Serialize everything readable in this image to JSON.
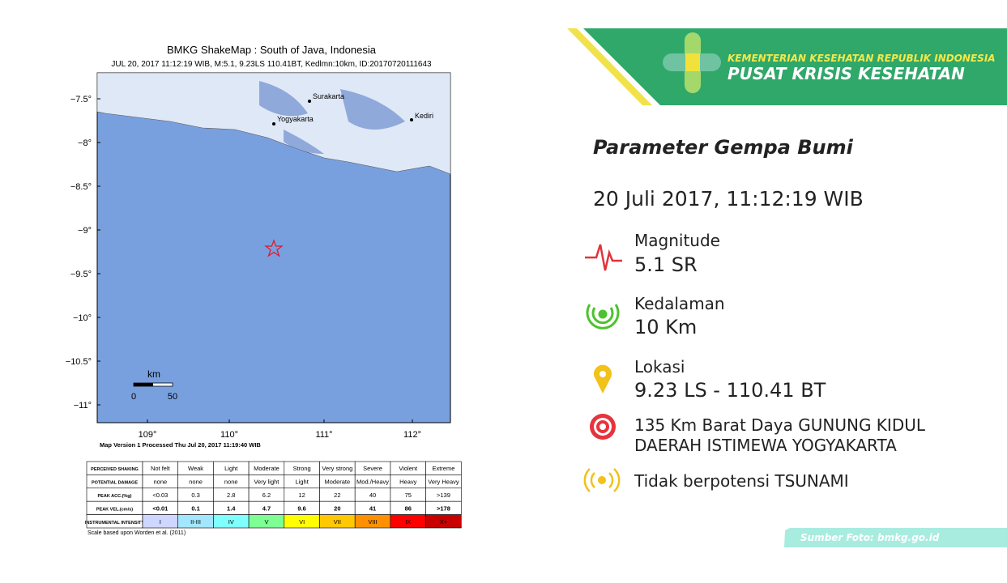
{
  "map": {
    "title": "BMKG ShakeMap : South of Java, Indonesia",
    "subtitle": "JUL 20, 2017 11:12:19 WIB, M:5.1, 9.23LS 110.41BT, Kedlmn:10km, ID:20170720111643",
    "yticks": [
      "−7.5°",
      "−8°",
      "−8.5°",
      "−9°",
      "−9.5°",
      "−10°",
      "−10.5°",
      "−11°"
    ],
    "xticks": [
      "109°",
      "110°",
      "111°",
      "112°"
    ],
    "cities": [
      "Surakarta",
      "Yogyakarta",
      "Kediri"
    ],
    "scale": {
      "unit": "km",
      "labels": [
        "0",
        "50"
      ]
    },
    "footer": "Map Version 1 Processed Thu Jul 20, 2017 11:19:40 WIB"
  },
  "legend_table": {
    "rows": [
      [
        "PERCEIVED SHAKING",
        "Not felt",
        "Weak",
        "Light",
        "Moderate",
        "Strong",
        "Very strong",
        "Severe",
        "Violent",
        "Extreme"
      ],
      [
        "POTENTIAL DAMAGE",
        "none",
        "none",
        "none",
        "Very light",
        "Light",
        "Moderate",
        "Mod./Heavy",
        "Heavy",
        "Very Heavy"
      ],
      [
        "PEAK ACC.(%g)",
        "<0.03",
        "0.3",
        "2.8",
        "6.2",
        "12",
        "22",
        "40",
        "75",
        ">139"
      ],
      [
        "PEAK VEL.(cm/s)",
        "<0.01",
        "0.1",
        "1.4",
        "4.7",
        "9.6",
        "20",
        "41",
        "86",
        ">178"
      ],
      [
        "INSTRUMENTAL INTENSITY",
        "I",
        "II-III",
        "IV",
        "V",
        "VI",
        "VII",
        "VIII",
        "IX",
        "X+"
      ]
    ],
    "note": "Scale based upon Worden et al. (2011)"
  },
  "header": {
    "line1": "KEMENTERIAN KESEHATAN REPUBLIK INDONESIA",
    "line2": "PUSAT KRISIS KESEHATAN"
  },
  "heading": "Parameter Gempa Bumi",
  "datetime": "20 Juli 2017, 11:12:19 WIB",
  "items": [
    {
      "label": "Magnitude",
      "value": "5.1 SR"
    },
    {
      "label": "Kedalaman",
      "value": "10 Km"
    },
    {
      "label": "Lokasi",
      "value": "9.23 LS - 110.41 BT"
    }
  ],
  "location_detail": [
    "135 Km Barat Daya GUNUNG KIDUL",
    "DAERAH ISTIMEWA YOGYAKARTA"
  ],
  "tsunami": "Tidak berpotensi TSUNAMI",
  "source": "Sumber Foto: bmkg.go.id"
}
